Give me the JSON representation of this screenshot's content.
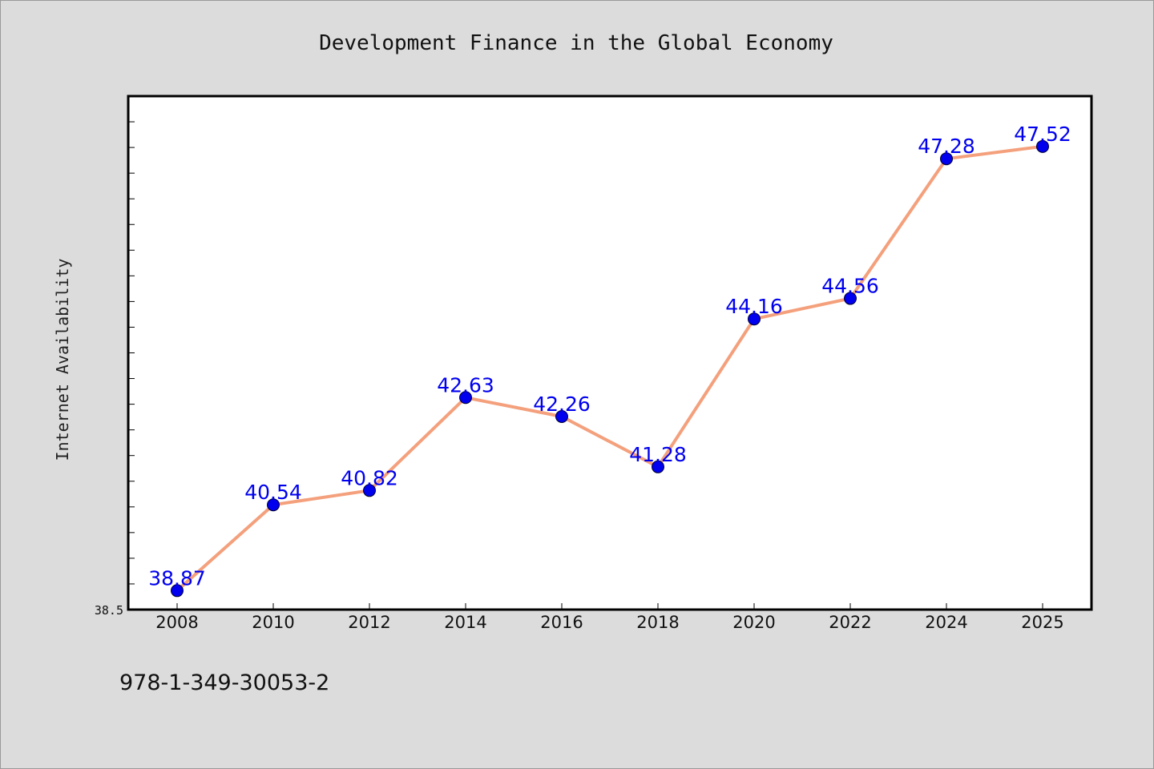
{
  "chart_data": {
    "type": "line",
    "title": "Development Finance in the Global Economy",
    "xlabel": "",
    "ylabel": "Internet Availability",
    "categories": [
      "2008",
      "2010",
      "2012",
      "2014",
      "2016",
      "2018",
      "2020",
      "2022",
      "2024",
      "2025"
    ],
    "series": [
      {
        "values": [
          38.87,
          40.54,
          40.82,
          42.63,
          42.26,
          41.28,
          44.16,
          44.56,
          47.28,
          47.52
        ]
      }
    ],
    "data_labels": [
      "38.87",
      "40.54",
      "40.82",
      "42.63",
      "42.26",
      "41.28",
      "44.16",
      "44.56",
      "47.28",
      "47.52"
    ],
    "ylim": [
      38.5,
      48.5
    ],
    "y_tick_labels": [
      "38.5"
    ],
    "grid": false,
    "legend": "none",
    "colors": {
      "line": "#f4a07c",
      "marker": "#0000ee",
      "data_label": "#0000ee",
      "plot_background": "#ffffff",
      "figure_background": "#dcdcdc"
    }
  },
  "footnote": "978-1-349-30053-2"
}
